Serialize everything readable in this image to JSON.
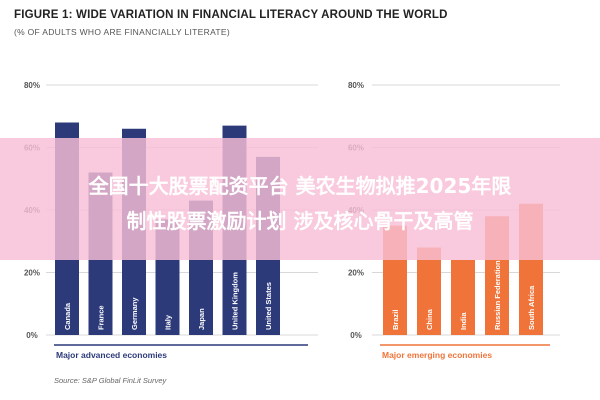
{
  "page": {
    "title": "FIGURE 1: WIDE VARIATION IN FINANCIAL LITERACY AROUND THE WORLD",
    "subtitle": "(% OF ADULTS WHO ARE FINANCIALLY LITERATE)",
    "source": "Source: S&P Global FinLit Survey",
    "overlay_line1": "全国十大股票配资平台 美农生物拟推2025年限",
    "overlay_line2": "制性股票激励计划 涉及核心骨干及高管"
  },
  "colors": {
    "advanced": "#2d3a7a",
    "emerging": "#f0743a",
    "axis_text": "#555555",
    "grid": "#d8d8d8",
    "overlay": "#f8bed6"
  },
  "chart_data": [
    {
      "type": "bar",
      "group_label": "Major advanced economies",
      "categories": [
        "Canada",
        "France",
        "Germany",
        "Italy",
        "Japan",
        "United Kingdom",
        "United States"
      ],
      "values": [
        68,
        52,
        66,
        37,
        43,
        67,
        57
      ],
      "ylim": [
        0,
        80
      ],
      "yticks": [
        "0%",
        "20%",
        "40%",
        "60%",
        "80%"
      ],
      "grid": true,
      "color": "#2d3a7a"
    },
    {
      "type": "bar",
      "group_label": "Major emerging economies",
      "categories": [
        "Brazil",
        "China",
        "India",
        "Russian Federation",
        "South Africa"
      ],
      "values": [
        35,
        28,
        24,
        38,
        42
      ],
      "ylim": [
        0,
        80
      ],
      "yticks": [
        "0%",
        "20%",
        "40%",
        "60%",
        "80%"
      ],
      "grid": true,
      "color": "#f0743a"
    }
  ]
}
